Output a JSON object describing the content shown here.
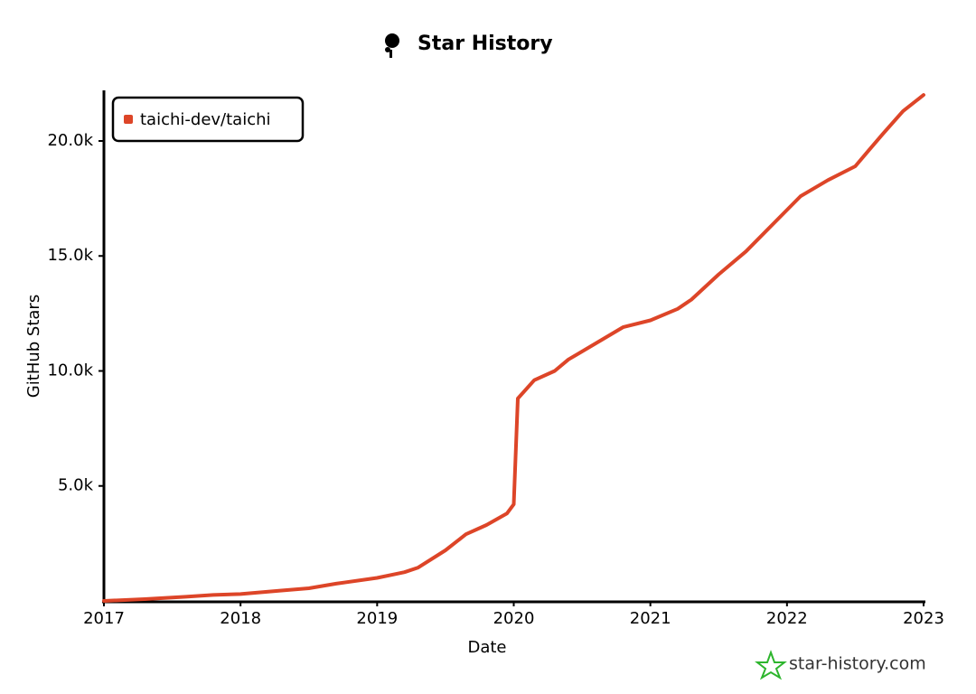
{
  "chart_data": {
    "type": "line",
    "title": "Star History",
    "x_label": "Date",
    "y_label": "GitHub Stars",
    "watermark": "star-history.com",
    "x": [
      2017.0,
      2017.3,
      2017.6,
      2017.8,
      2018.0,
      2018.3,
      2018.5,
      2018.7,
      2019.0,
      2019.2,
      2019.3,
      2019.5,
      2019.65,
      2019.8,
      2019.95,
      2020.0,
      2020.03,
      2020.15,
      2020.3,
      2020.4,
      2020.6,
      2020.8,
      2021.0,
      2021.2,
      2021.3,
      2021.5,
      2021.7,
      2021.9,
      2022.1,
      2022.3,
      2022.5,
      2022.6,
      2022.7,
      2022.85,
      2023.0
    ],
    "series": [
      {
        "name": "taichi-dev/taichi",
        "color": "#dd4528",
        "values": [
          0,
          80,
          180,
          260,
          300,
          450,
          550,
          750,
          1000,
          1250,
          1450,
          2200,
          2900,
          3300,
          3800,
          4200,
          8800,
          9600,
          10000,
          10500,
          11200,
          11900,
          12200,
          12700,
          13100,
          14200,
          15200,
          16400,
          17600,
          18300,
          18900,
          19600,
          20300,
          21300,
          22000
        ]
      }
    ],
    "xlim": [
      2017,
      2023
    ],
    "xticks": [
      2017,
      2018,
      2019,
      2020,
      2021,
      2022,
      2023
    ],
    "ylim": [
      0,
      22200
    ],
    "yticks": [
      {
        "value": 5000,
        "label": "5.0k"
      },
      {
        "value": 10000,
        "label": "10.0k"
      },
      {
        "value": 15000,
        "label": "15.0k"
      },
      {
        "value": 20000,
        "label": "20.0k"
      }
    ],
    "legend": "top-left"
  }
}
